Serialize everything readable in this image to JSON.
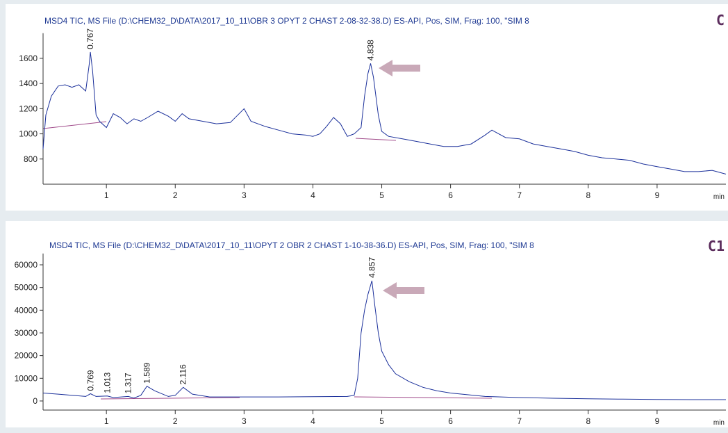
{
  "chart_data": [
    {
      "type": "line",
      "title": "MSD4 TIC, MS File (D:\\CHEM32_D\\DATA\\2017_10_11\\OBR 3 OPYT 2 CHAST 2-08-32-38.D)    ES-API, Pos, SIM, Frag: 100, \"SIM 8",
      "panel_label": "C",
      "x_label": "min",
      "color": "#1a2f9a",
      "x": [
        0.08,
        0.12,
        0.2,
        0.3,
        0.4,
        0.5,
        0.6,
        0.7,
        0.75,
        0.767,
        0.8,
        0.85,
        0.9,
        1.0,
        1.1,
        1.2,
        1.3,
        1.4,
        1.5,
        1.6,
        1.75,
        1.9,
        2.0,
        2.1,
        2.2,
        2.4,
        2.6,
        2.8,
        3.0,
        3.1,
        3.3,
        3.5,
        3.7,
        3.9,
        4.0,
        4.1,
        4.2,
        4.3,
        4.4,
        4.5,
        4.6,
        4.7,
        4.75,
        4.8,
        4.838,
        4.88,
        4.95,
        5.0,
        5.1,
        5.3,
        5.5,
        5.7,
        5.9,
        6.1,
        6.3,
        6.5,
        6.6,
        6.8,
        7.0,
        7.2,
        7.4,
        7.6,
        7.8,
        8.0,
        8.2,
        8.4,
        8.6,
        8.8,
        9.0,
        9.2,
        9.4,
        9.6,
        9.8,
        10.0
      ],
      "values": [
        880,
        1150,
        1300,
        1380,
        1390,
        1370,
        1390,
        1340,
        1550,
        1650,
        1500,
        1150,
        1100,
        1050,
        1160,
        1130,
        1080,
        1120,
        1100,
        1130,
        1180,
        1140,
        1100,
        1160,
        1120,
        1100,
        1080,
        1090,
        1200,
        1100,
        1060,
        1030,
        1000,
        990,
        980,
        1000,
        1060,
        1130,
        1080,
        980,
        1000,
        1050,
        1300,
        1480,
        1560,
        1450,
        1150,
        1020,
        980,
        960,
        940,
        920,
        900,
        900,
        920,
        990,
        1030,
        970,
        960,
        920,
        900,
        880,
        860,
        830,
        810,
        800,
        790,
        760,
        740,
        720,
        700,
        700,
        710,
        680
      ],
      "peak_labels": [
        0.767,
        4.838
      ],
      "xlim": [
        0.08,
        10
      ],
      "xticks": [
        1,
        2,
        3,
        4,
        5,
        6,
        7,
        8,
        9
      ],
      "ylim": [
        600,
        1800
      ],
      "yticks": [
        800,
        1000,
        1200,
        1400,
        1600
      ]
    },
    {
      "type": "line",
      "title": "MSD4 TIC, MS File (D:\\CHEM32_D\\DATA\\2017_10_11\\OPYT 2 OBR 2 CHAST 1-10-38-36.D)    ES-API, Pos, SIM, Frag: 100, \"SIM 8",
      "panel_label": "C1",
      "x_label": "min",
      "color": "#1a2f9a",
      "x": [
        0.08,
        0.3,
        0.5,
        0.7,
        0.769,
        0.85,
        1.013,
        1.1,
        1.317,
        1.4,
        1.5,
        1.589,
        1.7,
        1.9,
        2.0,
        2.116,
        2.25,
        2.5,
        3.0,
        3.5,
        4.0,
        4.5,
        4.6,
        4.65,
        4.7,
        4.75,
        4.8,
        4.857,
        4.9,
        4.95,
        5.0,
        5.1,
        5.2,
        5.4,
        5.6,
        5.8,
        6.0,
        6.5,
        7.0,
        7.5,
        8.0,
        8.5,
        9.0,
        9.5,
        10.0
      ],
      "values": [
        3500,
        3000,
        2500,
        2000,
        3200,
        2000,
        2200,
        1500,
        2000,
        1300,
        2500,
        6500,
        4500,
        2000,
        2500,
        6000,
        3000,
        1800,
        1800,
        1800,
        1900,
        2000,
        2500,
        10000,
        30000,
        40000,
        47000,
        53000,
        42000,
        30000,
        22000,
        16000,
        12000,
        8500,
        6000,
        4500,
        3500,
        2000,
        1500,
        1200,
        1000,
        800,
        700,
        600,
        600
      ],
      "peak_labels": [
        0.769,
        1.013,
        1.317,
        1.589,
        2.116,
        4.857
      ],
      "xlim": [
        0.08,
        10
      ],
      "xticks": [
        1,
        2,
        3,
        4,
        5,
        6,
        7,
        8,
        9
      ],
      "ylim": [
        -4000,
        65000
      ],
      "yticks": [
        0,
        10000,
        20000,
        30000,
        40000,
        50000,
        60000
      ]
    }
  ]
}
